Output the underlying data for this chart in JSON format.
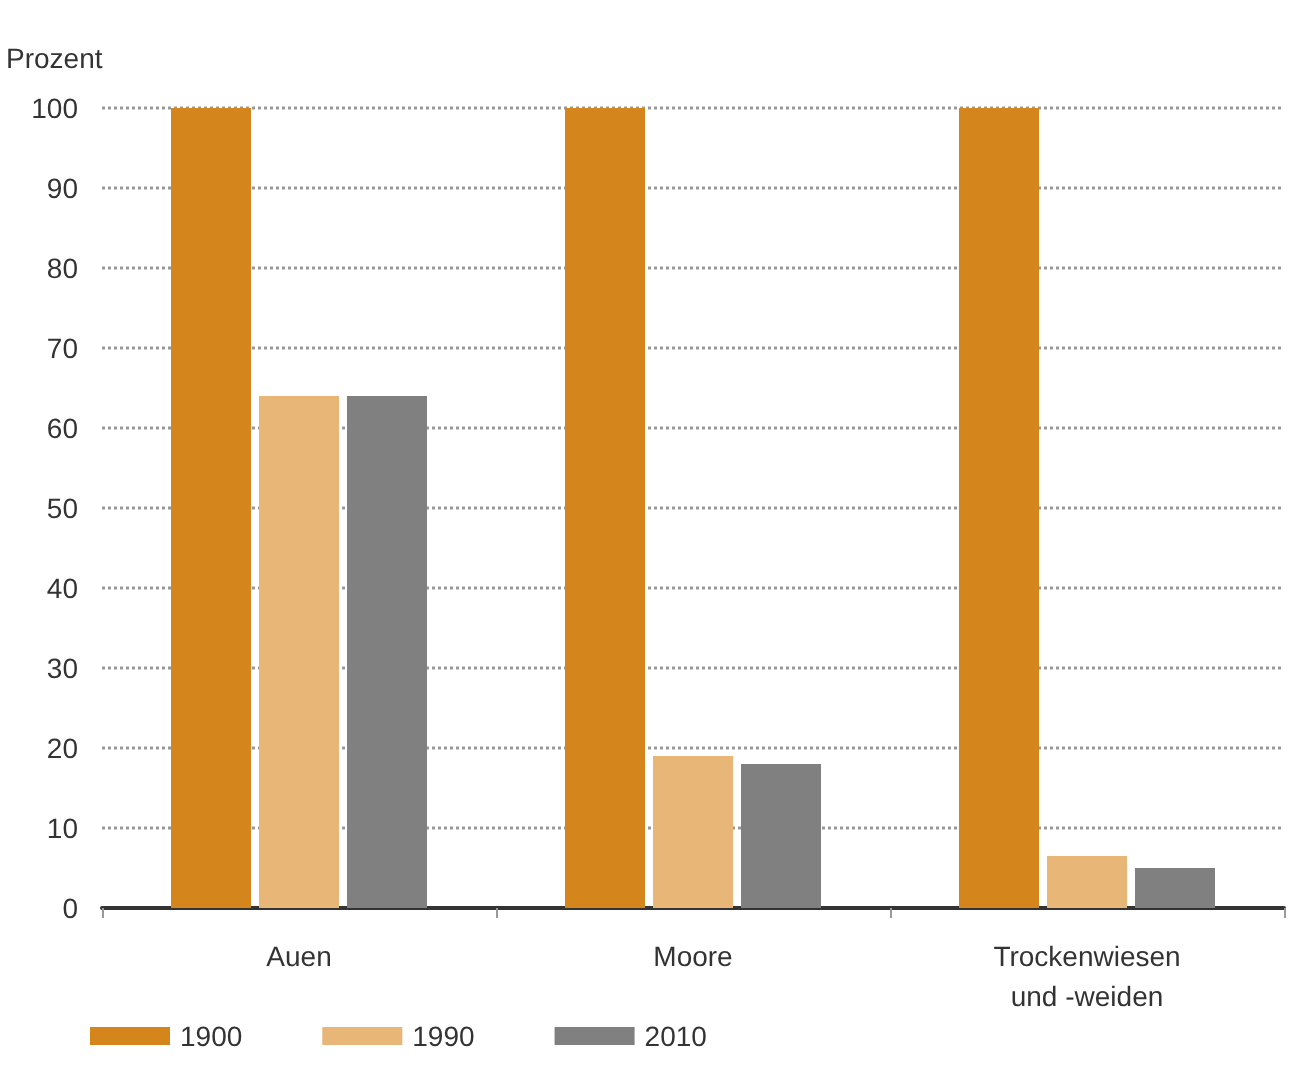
{
  "chart_data": {
    "type": "bar",
    "ylabel": "Prozent",
    "categories": [
      "Auen",
      "Moore",
      "Trockenwiesen\nund -weiden"
    ],
    "series": [
      {
        "name": "1900",
        "color": "#d4861c",
        "values": [
          100,
          100,
          100
        ]
      },
      {
        "name": "1990",
        "color": "#e8b677",
        "values": [
          64,
          19,
          6.5
        ]
      },
      {
        "name": "2010",
        "color": "#808080",
        "values": [
          64,
          18,
          5
        ]
      }
    ],
    "ylim": [
      0,
      100
    ],
    "yticks": [
      0,
      10,
      20,
      30,
      40,
      50,
      60,
      70,
      80,
      90,
      100
    ],
    "grid": "y",
    "legend": "bottom left"
  }
}
